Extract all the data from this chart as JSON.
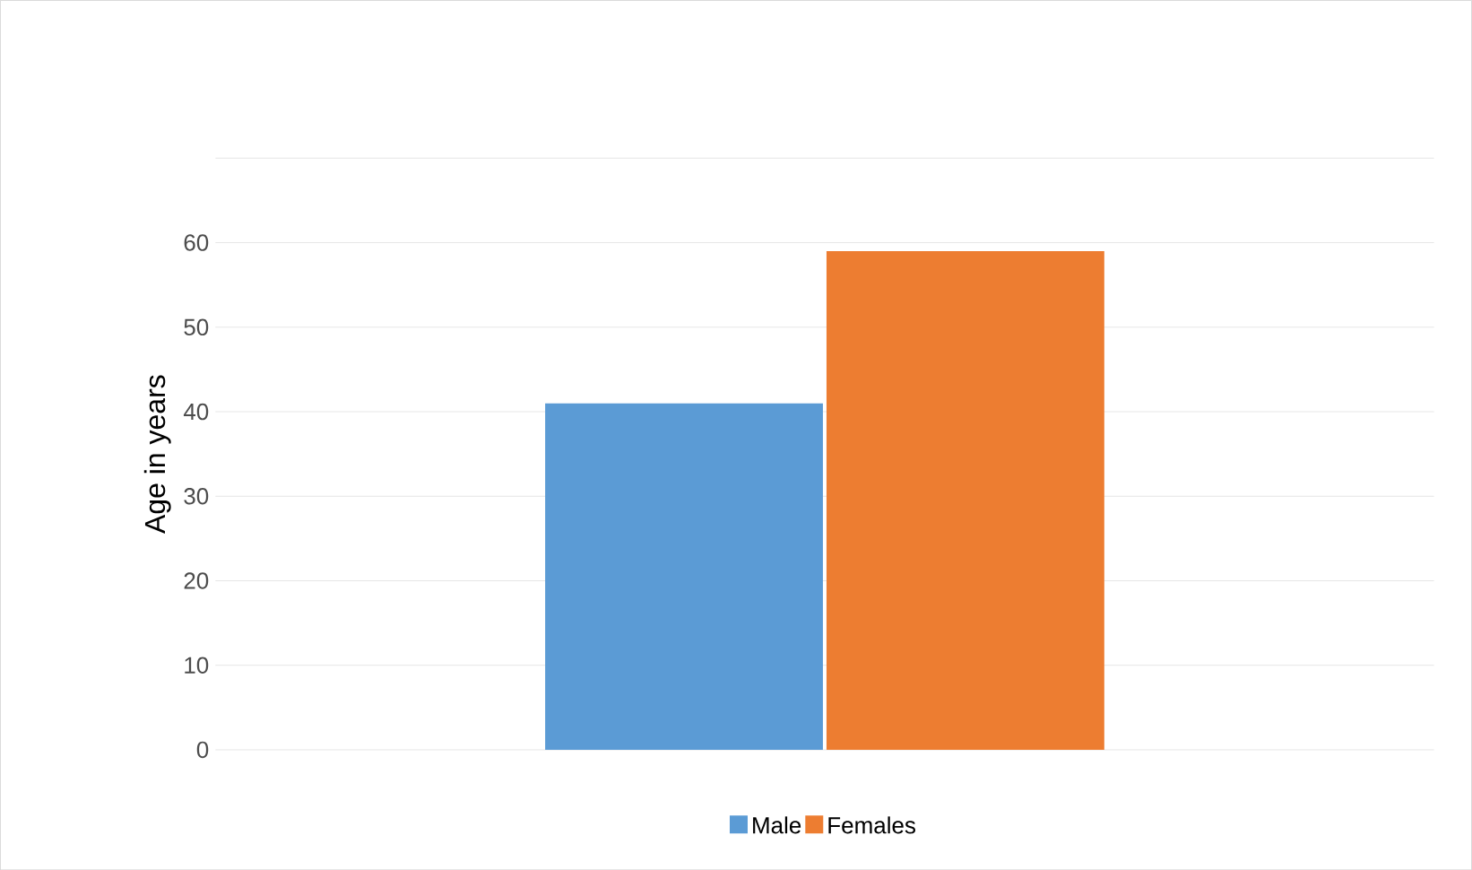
{
  "chart_data": {
    "type": "bar",
    "ylabel": "Age  in years",
    "categories": [
      null
    ],
    "series": [
      {
        "name": "Male",
        "color": "#5b9bd5",
        "values": [
          41
        ]
      },
      {
        "name": "Females",
        "color": "#ed7d31",
        "values": [
          59
        ]
      }
    ],
    "ylim": [
      0,
      70
    ],
    "yticks": [
      0,
      10,
      20,
      30,
      40,
      50,
      60,
      {
        "value": 70,
        "label": null
      }
    ],
    "grid": "y",
    "legend": "bottom"
  }
}
